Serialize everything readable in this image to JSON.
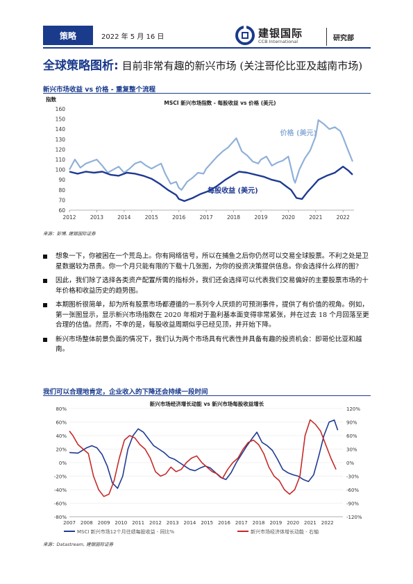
{
  "header": {
    "tag": "策略",
    "date": "2022 年 5 月 16 日",
    "logo_name": "建银国际",
    "logo_en": "CCB International",
    "dept": "研究部"
  },
  "title": {
    "bold": "全球策略图析:",
    "rest": " 目前非常有趣的新兴市场 (关注哥伦比亚及越南市场)"
  },
  "figure1": {
    "caption": "新兴市场收益 vs 价格 - 重复整个流程",
    "source": "来源：彭博, 建银国际证券"
  },
  "figure2": {
    "caption": "我们可以合理地肯定，企业收入的下降还会持续一段时间",
    "source": "来源：Datastream, 建银国际证券"
  },
  "bullets": [
    "想象一下，你被困在一个荒岛上。你有网络信号，所以在捕鱼之后你仍然可以交易全球股票。不利之处是卫星数据较为昂贵。你一个月只能有限的下载十几张图，为你的投资决策提供信息。你会选择什么样的图?",
    "因此，我们除了选择各类资产配置所需的指标外，我们还会选择可以代表我们交易偏好的主要股票市场的十年价格和收益历史的趋势图。",
    "本期图析很简单，却为所有股票市场都遵循的一系列令人厌烦的可预测事件，提供了有价值的视角。例如，第一张图显示，显示新兴市场指数在 2020 年相对于盈利基本面变得非常紧张，并在过去 18 个月回落至更合理的估值。然而，不幸的是，每股收益周期似乎已经见顶，并开始下降。",
    "新兴市场整体前景负面的情况下，我们认为两个市场具有代表性并具备有趣的投资机会：即哥伦比亚和越南。"
  ],
  "chart_data": [
    {
      "type": "line",
      "title": "MSCI 新兴市场指数 - 每股收益 vs 价格 (美元)",
      "ylabel": "指数",
      "ylim": [
        60,
        160
      ],
      "yticks": [
        60,
        70,
        80,
        90,
        100,
        110,
        120,
        130,
        140,
        150,
        160
      ],
      "xticks": [
        "2012",
        "2013",
        "2014",
        "2015",
        "2016",
        "2017",
        "2018",
        "2019",
        "2020",
        "2021",
        "2022"
      ],
      "xlim": [
        2012,
        2022.4
      ],
      "colors": {
        "price": "#8fb0d8",
        "eps": "#1f3a93"
      },
      "series": [
        {
          "name": "价格 (美元)",
          "x": [
            2012.0,
            2012.2,
            2012.4,
            2012.6,
            2012.8,
            2013.0,
            2013.2,
            2013.4,
            2013.6,
            2013.8,
            2014.0,
            2014.2,
            2014.4,
            2014.6,
            2014.8,
            2015.0,
            2015.2,
            2015.35,
            2015.5,
            2015.7,
            2015.9,
            2016.0,
            2016.1,
            2016.3,
            2016.5,
            2016.7,
            2016.9,
            2017.0,
            2017.2,
            2017.4,
            2017.6,
            2017.8,
            2018.0,
            2018.1,
            2018.3,
            2018.5,
            2018.7,
            2018.9,
            2019.0,
            2019.2,
            2019.4,
            2019.6,
            2019.8,
            2020.0,
            2020.2,
            2020.25,
            2020.4,
            2020.6,
            2020.8,
            2021.0,
            2021.1,
            2021.3,
            2021.5,
            2021.7,
            2021.9,
            2022.0,
            2022.2,
            2022.35
          ],
          "values": [
            100,
            110,
            102,
            106,
            108,
            110,
            104,
            97,
            100,
            103,
            97,
            101,
            106,
            108,
            104,
            101,
            104,
            106,
            96,
            86,
            88,
            82,
            80,
            88,
            92,
            97,
            96,
            101,
            107,
            113,
            118,
            122,
            128,
            131,
            118,
            114,
            108,
            106,
            110,
            113,
            104,
            107,
            109,
            113,
            90,
            87,
            100,
            111,
            119,
            133,
            149,
            145,
            140,
            142,
            138,
            132,
            118,
            108
          ]
        },
        {
          "name": "每股收益 (美元)",
          "x": [
            2012.0,
            2012.3,
            2012.6,
            2012.9,
            2013.2,
            2013.5,
            2013.8,
            2014.1,
            2014.4,
            2014.7,
            2015.0,
            2015.3,
            2015.6,
            2015.9,
            2016.0,
            2016.2,
            2016.5,
            2016.8,
            2017.1,
            2017.4,
            2017.7,
            2018.0,
            2018.2,
            2018.5,
            2018.8,
            2019.1,
            2019.4,
            2019.7,
            2019.9,
            2020.1,
            2020.3,
            2020.5,
            2020.7,
            2020.9,
            2021.1,
            2021.4,
            2021.7,
            2022.0,
            2022.2,
            2022.35
          ],
          "values": [
            98,
            96,
            98,
            97,
            98,
            95,
            94,
            97,
            96,
            94,
            91,
            86,
            80,
            75,
            71,
            69,
            72,
            76,
            79,
            84,
            90,
            95,
            98,
            97,
            95,
            93,
            90,
            88,
            84,
            80,
            72,
            71,
            78,
            84,
            90,
            94,
            97,
            103,
            99,
            95
          ]
        }
      ]
    },
    {
      "type": "line",
      "title": "新兴市场经济增长动能 vs 新兴市场每股收益增长",
      "ylim_left": [
        -80,
        80
      ],
      "yticks_left": [
        "-80%",
        "-60%",
        "-40%",
        "-20%",
        "0%",
        "20%",
        "40%",
        "60%",
        "80%"
      ],
      "ylim_right": [
        -120,
        120
      ],
      "yticks_right": [
        "-120%",
        "-90%",
        "-60%",
        "-30%",
        "0%",
        "30%",
        "60%",
        "90%",
        "120%"
      ],
      "xticks": [
        "2007",
        "2008",
        "2009",
        "2010",
        "2011",
        "2012",
        "2013",
        "2014",
        "2015",
        "2016",
        "2017",
        "2018",
        "2019",
        "2020",
        "2021",
        "2022"
      ],
      "xlim": [
        2007,
        2022.9
      ],
      "colors": {
        "eps": "#1f3a93",
        "momentum": "#c62828"
      },
      "legend": "bottom",
      "series": [
        {
          "name": "MSCI 新兴市场12个月往绩每股收益 - 同比%",
          "axis": "left",
          "x": [
            2007.0,
            2007.5,
            2008.0,
            2008.3,
            2008.6,
            2008.9,
            2009.2,
            2009.5,
            2009.8,
            2010.1,
            2010.4,
            2010.7,
            2011.0,
            2011.3,
            2011.6,
            2011.9,
            2012.2,
            2012.5,
            2012.8,
            2013.1,
            2013.4,
            2013.7,
            2014.0,
            2014.3,
            2014.6,
            2014.9,
            2015.2,
            2015.5,
            2015.8,
            2016.1,
            2016.4,
            2016.7,
            2017.0,
            2017.3,
            2017.6,
            2017.9,
            2018.2,
            2018.5,
            2018.8,
            2019.1,
            2019.4,
            2019.7,
            2020.0,
            2020.3,
            2020.6,
            2020.9,
            2021.2,
            2021.5,
            2021.8,
            2022.1,
            2022.4,
            2022.6
          ],
          "values": [
            15,
            14,
            22,
            25,
            22,
            12,
            -5,
            -30,
            -38,
            -20,
            20,
            40,
            50,
            45,
            35,
            25,
            20,
            15,
            8,
            5,
            0,
            -5,
            -10,
            -12,
            -8,
            -5,
            -8,
            -15,
            -22,
            -25,
            -15,
            0,
            12,
            24,
            35,
            45,
            30,
            25,
            18,
            5,
            -10,
            -15,
            -18,
            -20,
            -25,
            -28,
            -18,
            10,
            40,
            60,
            63,
            48
          ]
        },
        {
          "name": "新兴市场经济体增长动能 - 右轴",
          "axis": "right",
          "x": [
            2007.0,
            2007.2,
            2007.5,
            2007.8,
            2008.1,
            2008.4,
            2008.7,
            2009.0,
            2009.3,
            2009.6,
            2009.9,
            2010.2,
            2010.5,
            2010.8,
            2011.1,
            2011.4,
            2011.7,
            2012.0,
            2012.3,
            2012.6,
            2012.9,
            2013.2,
            2013.5,
            2013.8,
            2014.1,
            2014.4,
            2014.7,
            2015.0,
            2015.3,
            2015.6,
            2015.9,
            2016.2,
            2016.5,
            2016.8,
            2017.1,
            2017.4,
            2017.7,
            2018.0,
            2018.3,
            2018.6,
            2018.9,
            2019.2,
            2019.5,
            2019.8,
            2020.1,
            2020.4,
            2020.7,
            2021.0,
            2021.3,
            2021.6,
            2021.9,
            2022.2,
            2022.5
          ],
          "values": [
            70,
            60,
            40,
            30,
            20,
            -30,
            -60,
            -75,
            -70,
            -40,
            10,
            50,
            60,
            55,
            40,
            30,
            10,
            -20,
            -30,
            -25,
            -10,
            -20,
            -15,
            0,
            10,
            15,
            0,
            -10,
            -20,
            -25,
            -35,
            -15,
            0,
            10,
            30,
            45,
            50,
            40,
            20,
            -10,
            -30,
            -40,
            -60,
            -70,
            -60,
            -30,
            60,
            95,
            85,
            70,
            40,
            10,
            -15
          ]
        }
      ]
    }
  ]
}
